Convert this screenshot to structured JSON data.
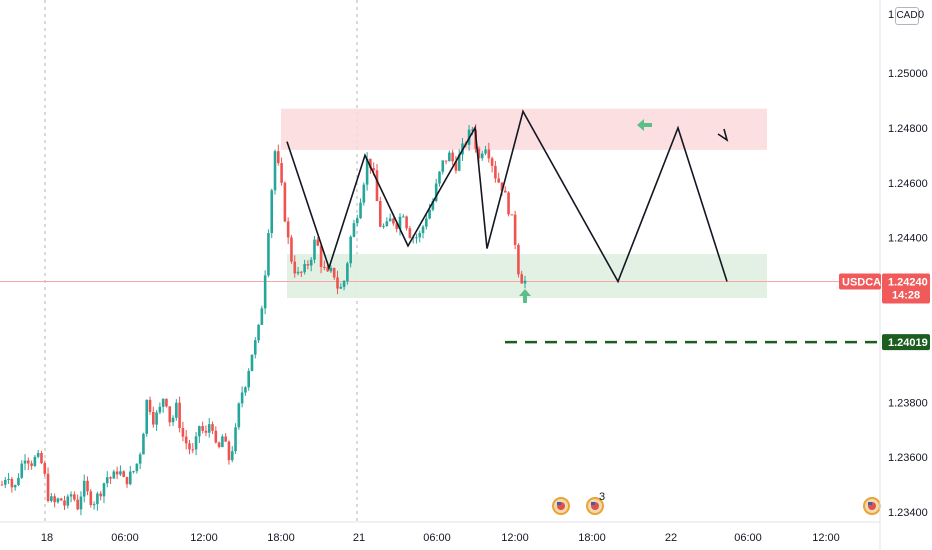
{
  "symbol": "USDCAD",
  "last_price": "1.24240",
  "countdown": "14:28",
  "target_price": "1.24019",
  "currency_label": "CAD",
  "corner_left": "1",
  "corner_right": "0",
  "event_count": "3",
  "colors": {
    "up": "#26a69a",
    "down": "#ef5350",
    "resistance_zone": "#fcd9dc",
    "support_zone": "#dff0e0",
    "target_line": "#1b5e20",
    "arrow": "#5bbf8a",
    "price_badge": "#f05a5a"
  },
  "chart_data": {
    "type": "candlestick",
    "ylim": [
      1.2334,
      1.2518
    ],
    "y_ticks": [
      "1.25000",
      "1.24800",
      "1.24600",
      "1.24400",
      "1.23800",
      "1.23600",
      "1.23400"
    ],
    "x_ticks": [
      "18",
      "06:00",
      "12:00",
      "18:00",
      "21",
      "06:00",
      "12:00",
      "18:00",
      "22",
      "06:00",
      "12:00"
    ],
    "close_path": [
      1.235,
      1.2355,
      1.2347,
      1.2355,
      1.2361,
      1.2358,
      1.236,
      1.2357,
      1.2345,
      1.2343,
      1.2345,
      1.2342,
      1.2347,
      1.2342,
      1.235,
      1.2345,
      1.2344,
      1.2348,
      1.2353,
      1.2352,
      1.2356,
      1.2351,
      1.2353,
      1.2356,
      1.2364,
      1.2382,
      1.2374,
      1.2376,
      1.2384,
      1.2372,
      1.2378,
      1.2368,
      1.2364,
      1.2361,
      1.2372,
      1.2367,
      1.2375,
      1.236,
      1.2368,
      1.2359,
      1.2366,
      1.2382,
      1.2388,
      1.2398,
      1.2404,
      1.242,
      1.2448,
      1.2472,
      1.246,
      1.2442,
      1.243,
      1.2426,
      1.2428,
      1.2432,
      1.244,
      1.243,
      1.2426,
      1.2428,
      1.242,
      1.2425,
      1.244,
      1.2448,
      1.2458,
      1.247,
      1.2462,
      1.2445,
      1.2443,
      1.2447,
      1.2445,
      1.245,
      1.2442,
      1.244,
      1.2441,
      1.2448,
      1.2452,
      1.2461,
      1.2468,
      1.247,
      1.2466,
      1.2471,
      1.2476,
      1.248,
      1.2468,
      1.2475,
      1.247,
      1.2462,
      1.2459,
      1.2452,
      1.2444,
      1.2426,
      1.2424
    ],
    "annotations": {
      "resistance_zone": [
        1.2472,
        1.2487
      ],
      "support_zone": [
        1.2418,
        1.2434
      ],
      "target_level": 1.24019,
      "projection_path": [
        1.2475,
        1.2429,
        1.247,
        1.2437,
        1.248,
        1.2436,
        1.2486,
        1.2424,
        1.248,
        1.2424,
        1.248
      ]
    }
  }
}
